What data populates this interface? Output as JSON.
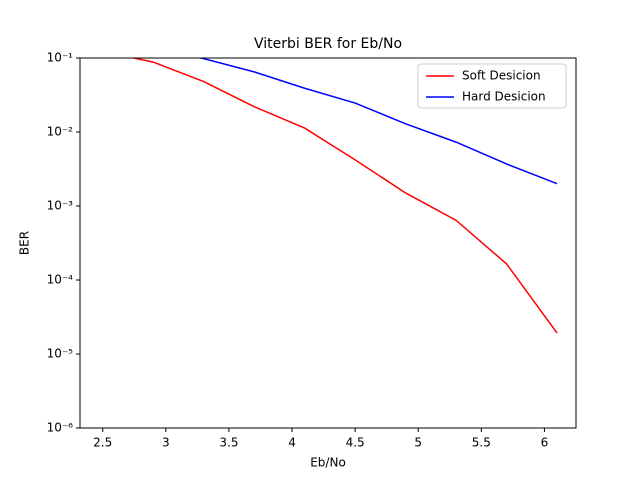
{
  "chart_data": {
    "type": "line",
    "title": "Viterbi BER for Eb/No",
    "x_label": "Eb/No",
    "y_label": "BER",
    "x": [
      2.5,
      2.9,
      3.3,
      3.7,
      4.1,
      4.5,
      4.9,
      5.3,
      5.7,
      6.1
    ],
    "series": [
      {
        "name": "Soft Desicion",
        "color": "#ff0000",
        "values": [
          0.123,
          0.088,
          0.048,
          0.022,
          0.0113,
          0.0042,
          0.0015,
          0.00064,
          0.000165,
          1.92e-05
        ]
      },
      {
        "name": "Hard Desicion",
        "color": "#0000ff",
        "values": [
          0.16,
          0.14,
          0.098,
          0.065,
          0.039,
          0.0246,
          0.0129,
          0.0073,
          0.0037,
          0.002
        ]
      }
    ],
    "xlim": [
      2.32,
      6.25
    ],
    "xticks": [
      2.5,
      3.0,
      3.5,
      4.0,
      4.5,
      5.0,
      5.5,
      6.0
    ],
    "ylim": [
      1e-06,
      0.1
    ],
    "log_y": true,
    "yticks": [
      {
        "value": 1e-06,
        "label": "10⁻⁶"
      },
      {
        "value": 1e-05,
        "label": "10⁻⁵"
      },
      {
        "value": 0.0001,
        "label": "10⁻⁴"
      },
      {
        "value": 0.001,
        "label": "10⁻³"
      },
      {
        "value": 0.01,
        "label": "10⁻²"
      },
      {
        "value": 0.1,
        "label": "10⁻¹"
      }
    ],
    "legend": "upper right",
    "grid": false
  }
}
